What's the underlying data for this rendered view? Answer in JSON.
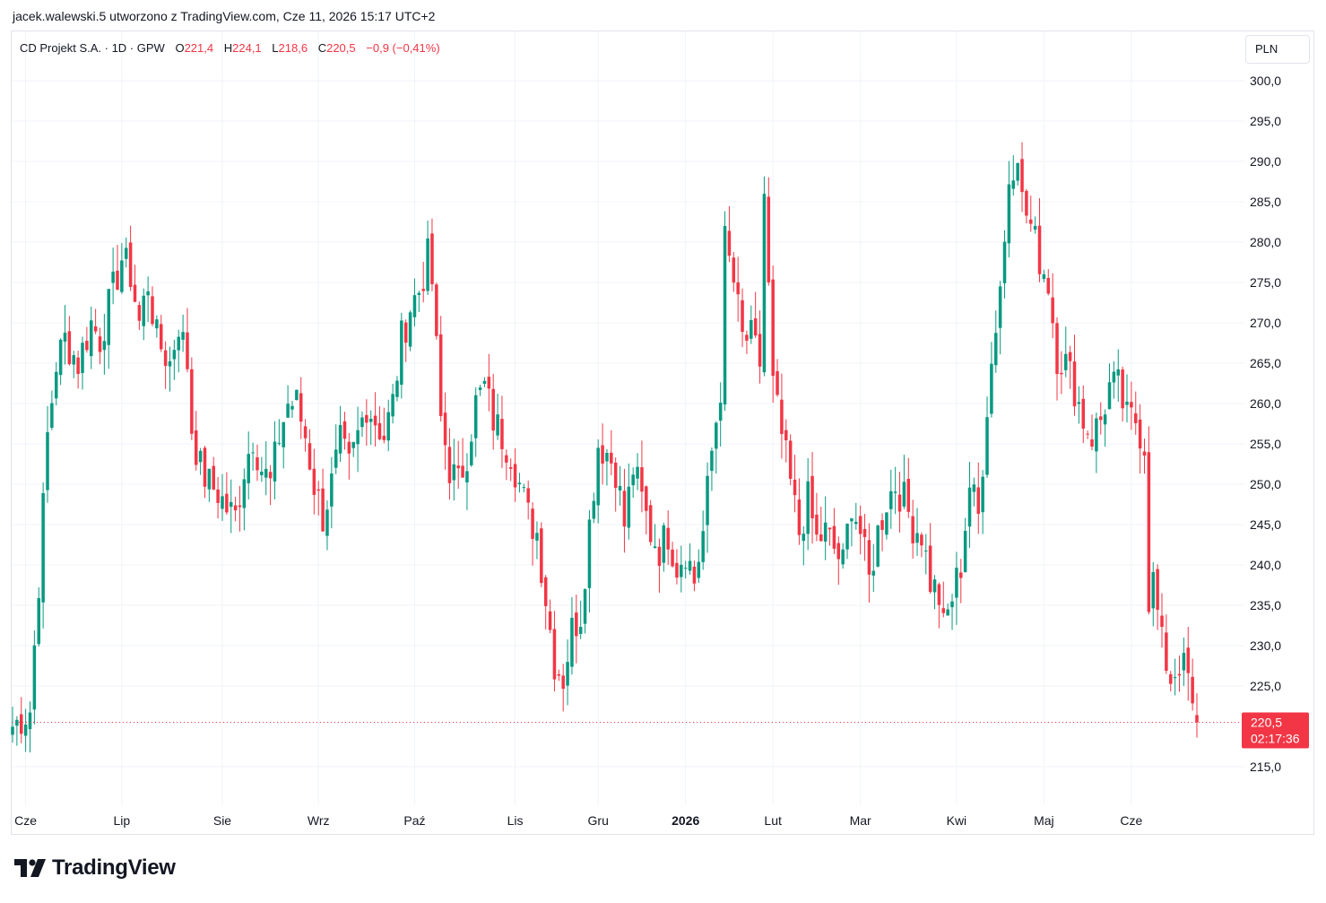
{
  "header": {
    "attribution": "jacek.walewski.5 utworzono z TradingView.com, Cze 11, 2026 15:17 UTC+2"
  },
  "legend": {
    "symbol": "CD Projekt S.A. · 1D · GPW",
    "open_label": "O",
    "open_value": "221,4",
    "high_label": "H",
    "high_value": "224,1",
    "low_label": "L",
    "low_value": "218,6",
    "close_label": "C",
    "close_value": "220,5",
    "change": "−0,9 (−0,41%)"
  },
  "currency": "PLN",
  "price_badge": {
    "price": "220,5",
    "countdown": "02:17:36"
  },
  "brand": {
    "name": "TradingView"
  },
  "colors": {
    "up": "#089981",
    "down": "#f23645",
    "grid": "#f0f3fa",
    "text": "#131722"
  },
  "chart_data": {
    "type": "candlestick",
    "y_axis": {
      "ticks": [
        300,
        295,
        290,
        285,
        280,
        275,
        270,
        265,
        260,
        255,
        250,
        245,
        240,
        235,
        230,
        225,
        215
      ],
      "tick_labels": [
        "300,0",
        "295,0",
        "290,0",
        "285,0",
        "280,0",
        "275,0",
        "270,0",
        "265,0",
        "260,0",
        "255,0",
        "250,0",
        "245,0",
        "240,0",
        "235,0",
        "230,0",
        "225,0",
        "215,0"
      ],
      "range": [
        211,
        306
      ]
    },
    "x_axis": {
      "labels": [
        {
          "text": "Cze",
          "index": 3,
          "bold": false
        },
        {
          "text": "Lip",
          "index": 25,
          "bold": false
        },
        {
          "text": "Sie",
          "index": 48,
          "bold": false
        },
        {
          "text": "Wrz",
          "index": 70,
          "bold": false
        },
        {
          "text": "Paź",
          "index": 92,
          "bold": false
        },
        {
          "text": "Lis",
          "index": 115,
          "bold": false
        },
        {
          "text": "Gru",
          "index": 134,
          "bold": false
        },
        {
          "text": "2026",
          "index": 154,
          "bold": true
        },
        {
          "text": "Lut",
          "index": 174,
          "bold": false
        },
        {
          "text": "Mar",
          "index": 194,
          "bold": false
        },
        {
          "text": "Kwi",
          "index": 216,
          "bold": false
        },
        {
          "text": "Maj",
          "index": 236,
          "bold": false
        },
        {
          "text": "Cze",
          "index": 256,
          "bold": false
        }
      ]
    },
    "last_price": 220.5,
    "keypoints": [
      [
        0,
        220
      ],
      [
        2,
        221
      ],
      [
        4,
        222
      ],
      [
        6,
        238
      ],
      [
        8,
        256
      ],
      [
        10,
        265
      ],
      [
        12,
        268
      ],
      [
        15,
        265
      ],
      [
        18,
        270
      ],
      [
        20,
        268
      ],
      [
        22,
        272
      ],
      [
        25,
        278
      ],
      [
        27,
        276
      ],
      [
        29,
        270
      ],
      [
        31,
        275
      ],
      [
        33,
        268
      ],
      [
        36,
        265
      ],
      [
        38,
        270
      ],
      [
        40,
        265
      ],
      [
        41,
        257
      ],
      [
        43,
        252
      ],
      [
        45,
        250
      ],
      [
        47,
        249
      ],
      [
        49,
        247
      ],
      [
        51,
        246
      ],
      [
        53,
        252
      ],
      [
        55,
        256
      ],
      [
        57,
        252
      ],
      [
        59,
        250
      ],
      [
        61,
        256
      ],
      [
        63,
        260
      ],
      [
        65,
        260
      ],
      [
        67,
        256
      ],
      [
        69,
        250
      ],
      [
        71,
        246
      ],
      [
        73,
        250
      ],
      [
        75,
        255
      ],
      [
        77,
        252
      ],
      [
        79,
        256
      ],
      [
        81,
        260
      ],
      [
        83,
        258
      ],
      [
        85,
        256
      ],
      [
        87,
        260
      ],
      [
        89,
        268
      ],
      [
        91,
        272
      ],
      [
        93,
        274
      ],
      [
        95,
        278
      ],
      [
        96,
        275
      ],
      [
        98,
        258
      ],
      [
        100,
        252
      ],
      [
        102,
        250
      ],
      [
        104,
        254
      ],
      [
        106,
        260
      ],
      [
        108,
        262
      ],
      [
        110,
        258
      ],
      [
        112,
        256
      ],
      [
        114,
        254
      ],
      [
        116,
        250
      ],
      [
        118,
        246
      ],
      [
        120,
        244
      ],
      [
        122,
        236
      ],
      [
        124,
        228
      ],
      [
        126,
        226
      ],
      [
        128,
        232
      ],
      [
        130,
        234
      ],
      [
        132,
        245
      ],
      [
        134,
        255
      ],
      [
        136,
        254
      ],
      [
        138,
        252
      ],
      [
        140,
        245
      ],
      [
        142,
        252
      ],
      [
        144,
        248
      ],
      [
        146,
        244
      ],
      [
        148,
        242
      ],
      [
        150,
        244
      ],
      [
        152,
        240
      ],
      [
        154,
        242
      ],
      [
        156,
        238
      ],
      [
        158,
        244
      ],
      [
        160,
        254
      ],
      [
        162,
        262
      ],
      [
        163,
        280
      ],
      [
        165,
        275
      ],
      [
        167,
        268
      ],
      [
        169,
        268
      ],
      [
        171,
        265
      ],
      [
        172,
        286
      ],
      [
        174,
        262
      ],
      [
        176,
        256
      ],
      [
        178,
        250
      ],
      [
        180,
        244
      ],
      [
        182,
        248
      ],
      [
        184,
        243
      ],
      [
        186,
        244
      ],
      [
        188,
        242
      ],
      [
        190,
        240
      ],
      [
        192,
        248
      ],
      [
        194,
        244
      ],
      [
        196,
        238
      ],
      [
        198,
        244
      ],
      [
        200,
        248
      ],
      [
        202,
        250
      ],
      [
        204,
        248
      ],
      [
        206,
        245
      ],
      [
        208,
        244
      ],
      [
        210,
        238
      ],
      [
        212,
        236
      ],
      [
        213,
        232
      ],
      [
        215,
        236
      ],
      [
        217,
        240
      ],
      [
        219,
        250
      ],
      [
        221,
        246
      ],
      [
        223,
        260
      ],
      [
        225,
        270
      ],
      [
        227,
        280
      ],
      [
        228,
        288
      ],
      [
        230,
        292
      ],
      [
        231,
        285
      ],
      [
        233,
        282
      ],
      [
        235,
        278
      ],
      [
        237,
        275
      ],
      [
        239,
        266
      ],
      [
        241,
        265
      ],
      [
        243,
        262
      ],
      [
        245,
        258
      ],
      [
        247,
        256
      ],
      [
        249,
        258
      ],
      [
        251,
        262
      ],
      [
        253,
        262
      ],
      [
        255,
        258
      ],
      [
        257,
        258
      ],
      [
        259,
        255
      ],
      [
        260,
        236
      ],
      [
        261,
        238
      ],
      [
        263,
        230
      ],
      [
        265,
        226
      ],
      [
        267,
        228
      ],
      [
        269,
        226
      ],
      [
        270,
        221.4
      ],
      [
        271,
        220.5
      ]
    ],
    "candle_count": 272
  }
}
